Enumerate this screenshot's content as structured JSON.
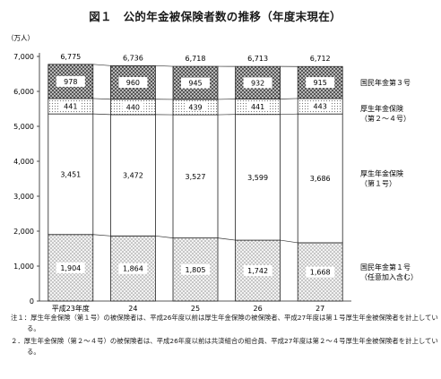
{
  "chart_data": {
    "type": "bar",
    "stacked": true,
    "title": "図１　公的年金被保険者数の推移（年度末現在）",
    "unit_label": "（万人）",
    "categories": [
      "平成23年度",
      "24",
      "25",
      "26",
      "27"
    ],
    "ylim": [
      0,
      7000
    ],
    "yticks": [
      0,
      1000,
      2000,
      3000,
      4000,
      5000,
      6000,
      7000
    ],
    "ytick_labels": [
      "0",
      "1,000",
      "2,000",
      "3,000",
      "4,000",
      "5,000",
      "6,000",
      "7,000"
    ],
    "series": [
      {
        "name": "国民年金第１号\n（任意加入含む）",
        "values": [
          1904,
          1864,
          1805,
          1742,
          1668
        ],
        "labels": [
          "1,904",
          "1,864",
          "1,805",
          "1,742",
          "1,668"
        ],
        "pattern": "diag-dots"
      },
      {
        "name": "厚生年金保険\n（第１号）",
        "values": [
          3451,
          3472,
          3527,
          3599,
          3686
        ],
        "labels": [
          "3,451",
          "3,472",
          "3,527",
          "3,599",
          "3,686"
        ],
        "pattern": "white"
      },
      {
        "name": "厚生年金保険\n（第２～４号）",
        "values": [
          441,
          440,
          439,
          441,
          443
        ],
        "labels": [
          "441",
          "440",
          "439",
          "441",
          "443"
        ],
        "pattern": "fine-dots"
      },
      {
        "name": "国民年金第３号",
        "values": [
          978,
          960,
          945,
          932,
          915
        ],
        "labels": [
          "978",
          "960",
          "945",
          "932",
          "915"
        ],
        "pattern": "dark-dots"
      }
    ],
    "totals": [
      6775,
      6736,
      6718,
      6713,
      6712
    ],
    "total_labels": [
      "6,775",
      "6,736",
      "6,718",
      "6,713",
      "6,712"
    ],
    "grid": false,
    "legend": "right"
  },
  "notes": [
    "注１：厚生年金保険（第１号）の被保険者は、平成26年度以前は厚生年金保険の被保険者、平成27年度は第１号厚生年金被保険者を計上している。",
    "２．厚生年金保険（第２～４号）の被保険者は、平成26年度以前は共済組合の組合員、平成27年度は第２～４号厚生年金被保険者を計上している。"
  ],
  "colors": {
    "border": "#222222",
    "dots_light": "#9a9a9a",
    "dots_dark": "#333333",
    "dots_bg": "#ffffff"
  }
}
